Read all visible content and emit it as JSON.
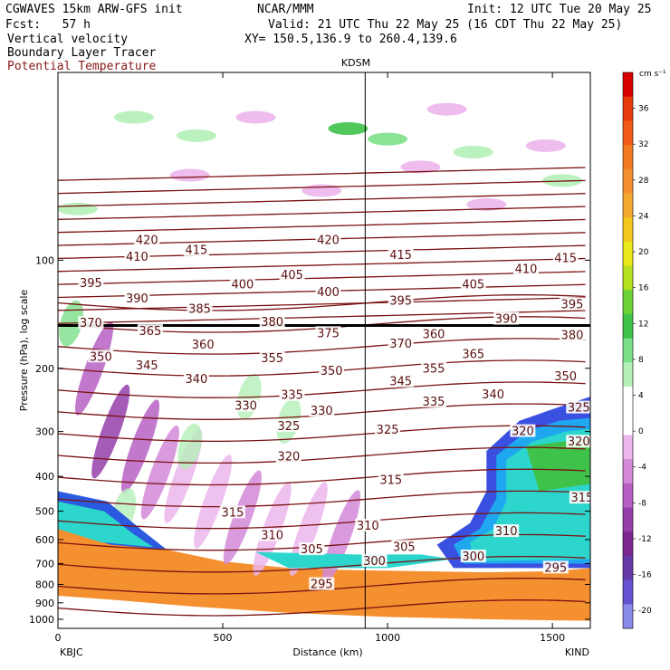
{
  "header": {
    "model_line": "CGWAVES 15km ARW-GFS init",
    "fcst_line": "Fcst:   57 h",
    "org": "NCAR/MMM",
    "init": "Init: 12 UTC Tue 20 May 25",
    "valid": "Valid: 21 UTC Thu 22 May 25 (16 CDT Thu 22 May 25)",
    "xy": "XY= 150.5,136.9 to 260.4,139.6",
    "field1": "Vertical velocity",
    "field2": "Boundary Layer Tracer",
    "field3": "Potential Temperature"
  },
  "colors": {
    "potential_temperature": "#7a1212",
    "land": "#f49030",
    "tropopause": "#000000"
  },
  "chart_data": {
    "type": "cross-section",
    "title": "KDSM",
    "xlabel": "Distance (km)",
    "ylabel": "Pressure (hPa), log scale",
    "x_ticks": [
      "0",
      "500",
      "1000",
      "1500"
    ],
    "x_tick_values": [
      0,
      500,
      1000,
      1500
    ],
    "xlim": [
      0,
      1615
    ],
    "y_ticks": [
      "100",
      "200",
      "300",
      "400",
      "500",
      "600",
      "700",
      "800",
      "900",
      "1000"
    ],
    "y_tick_values": [
      100,
      200,
      300,
      400,
      500,
      600,
      700,
      800,
      900,
      1000
    ],
    "ylim": [
      30,
      1060
    ],
    "y_scale": "log",
    "left_endpoint": "KBJC",
    "right_endpoint": "KIND",
    "marker_x": 932,
    "marker_label": "KDSM",
    "colorbar": {
      "unit": "cm s⁻¹",
      "ticks": [
        "36",
        "32",
        "28",
        "24",
        "20",
        "16",
        "12",
        "8",
        "4",
        "0",
        "-4",
        "-8",
        "-12",
        "-16",
        "-20"
      ],
      "tick_values": [
        36,
        32,
        28,
        24,
        20,
        16,
        12,
        8,
        4,
        0,
        -4,
        -8,
        -12,
        -16,
        -20
      ],
      "colors": [
        "#d90000",
        "#e63a0c",
        "#ef5a18",
        "#f27a20",
        "#f49030",
        "#f4a830",
        "#f2c81c",
        "#e8e81a",
        "#b4e01e",
        "#6ad234",
        "#3fc24a",
        "#7ce08a",
        "#b4efb8",
        "#ffffff",
        "#ffffff",
        "#ecb6ec",
        "#d48ad8",
        "#b660c4",
        "#9440aa",
        "#7a2890",
        "#663aa8",
        "#6652d0",
        "#8a8ae8"
      ]
    },
    "theta_labels": [
      {
        "v": "420",
        "x": 270,
        "p": 88
      },
      {
        "v": "420",
        "x": 820,
        "p": 88
      },
      {
        "v": "415",
        "x": 420,
        "p": 94
      },
      {
        "v": "415",
        "x": 1040,
        "p": 97
      },
      {
        "v": "415",
        "x": 1540,
        "p": 99
      },
      {
        "v": "410",
        "x": 240,
        "p": 98
      },
      {
        "v": "410",
        "x": 1420,
        "p": 106
      },
      {
        "v": "405",
        "x": 710,
        "p": 110
      },
      {
        "v": "405",
        "x": 1260,
        "p": 117
      },
      {
        "v": "400",
        "x": 560,
        "p": 117
      },
      {
        "v": "400",
        "x": 820,
        "p": 123
      },
      {
        "v": "395",
        "x": 100,
        "p": 116
      },
      {
        "v": "395",
        "x": 1040,
        "p": 130
      },
      {
        "v": "395",
        "x": 1560,
        "p": 133
      },
      {
        "v": "390",
        "x": 240,
        "p": 128
      },
      {
        "v": "390",
        "x": 1360,
        "p": 146
      },
      {
        "v": "385",
        "x": 430,
        "p": 137
      },
      {
        "v": "380",
        "x": 650,
        "p": 149
      },
      {
        "v": "380",
        "x": 1560,
        "p": 162
      },
      {
        "v": "375",
        "x": 820,
        "p": 160
      },
      {
        "v": "370",
        "x": 100,
        "p": 150
      },
      {
        "v": "370",
        "x": 1040,
        "p": 171
      },
      {
        "v": "365",
        "x": 280,
        "p": 158
      },
      {
        "v": "365",
        "x": 1260,
        "p": 183
      },
      {
        "v": "360",
        "x": 440,
        "p": 172
      },
      {
        "v": "360",
        "x": 1140,
        "p": 161
      },
      {
        "v": "355",
        "x": 650,
        "p": 188
      },
      {
        "v": "355",
        "x": 1140,
        "p": 201
      },
      {
        "v": "350",
        "x": 130,
        "p": 186
      },
      {
        "v": "350",
        "x": 830,
        "p": 204
      },
      {
        "v": "350",
        "x": 1540,
        "p": 211
      },
      {
        "v": "345",
        "x": 270,
        "p": 197
      },
      {
        "v": "345",
        "x": 1040,
        "p": 218
      },
      {
        "v": "340",
        "x": 420,
        "p": 215
      },
      {
        "v": "340",
        "x": 1320,
        "p": 237
      },
      {
        "v": "335",
        "x": 710,
        "p": 238
      },
      {
        "v": "335",
        "x": 1140,
        "p": 248
      },
      {
        "v": "330",
        "x": 570,
        "p": 255
      },
      {
        "v": "330",
        "x": 800,
        "p": 263
      },
      {
        "v": "325",
        "x": 700,
        "p": 290
      },
      {
        "v": "325",
        "x": 1000,
        "p": 297
      },
      {
        "v": "325",
        "x": 1580,
        "p": 258
      },
      {
        "v": "320",
        "x": 700,
        "p": 353
      },
      {
        "v": "320",
        "x": 1410,
        "p": 300
      },
      {
        "v": "320",
        "x": 1580,
        "p": 321
      },
      {
        "v": "315",
        "x": 530,
        "p": 505
      },
      {
        "v": "315",
        "x": 1010,
        "p": 410
      },
      {
        "v": "315",
        "x": 1590,
        "p": 460
      },
      {
        "v": "310",
        "x": 650,
        "p": 585
      },
      {
        "v": "310",
        "x": 940,
        "p": 550
      },
      {
        "v": "310",
        "x": 1360,
        "p": 570
      },
      {
        "v": "305",
        "x": 770,
        "p": 640
      },
      {
        "v": "305",
        "x": 1050,
        "p": 630
      },
      {
        "v": "300",
        "x": 960,
        "p": 690
      },
      {
        "v": "300",
        "x": 1260,
        "p": 670
      },
      {
        "v": "295",
        "x": 800,
        "p": 800
      },
      {
        "v": "295",
        "x": 1510,
        "p": 720
      }
    ]
  }
}
